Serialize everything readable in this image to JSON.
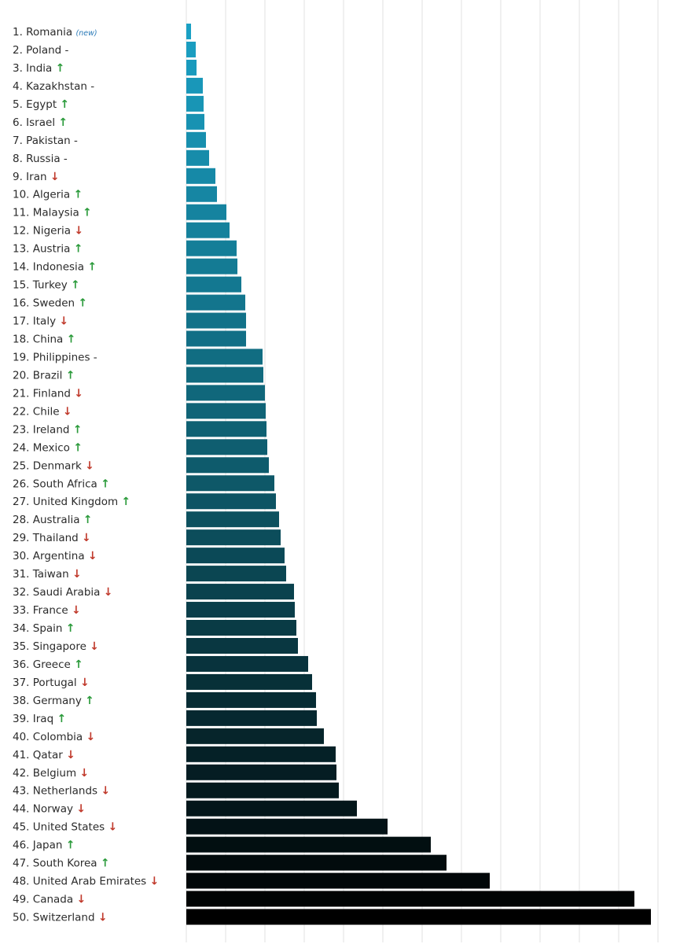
{
  "chart_data": {
    "type": "bar",
    "orientation": "horizontal",
    "title": "",
    "xlabel": "",
    "ylabel": "",
    "grid": true,
    "xlim": [
      0,
      12
    ],
    "trend_symbols": {
      "up": "↑",
      "down": "↓",
      "same": "-"
    },
    "items": [
      {
        "rank": "1.",
        "country": "Romania",
        "trend": "new",
        "tag": "(new)",
        "value": 0.12
      },
      {
        "rank": "2.",
        "country": "Poland",
        "trend": "same",
        "value": 0.24
      },
      {
        "rank": "3.",
        "country": "India",
        "trend": "up",
        "value": 0.26
      },
      {
        "rank": "4.",
        "country": "Kazakhstan",
        "trend": "same",
        "value": 0.42
      },
      {
        "rank": "5.",
        "country": "Egypt",
        "trend": "up",
        "value": 0.44
      },
      {
        "rank": "6.",
        "country": "Israel",
        "trend": "up",
        "value": 0.46
      },
      {
        "rank": "7.",
        "country": "Pakistan",
        "trend": "same",
        "value": 0.5
      },
      {
        "rank": "8.",
        "country": "Russia",
        "trend": "same",
        "value": 0.58
      },
      {
        "rank": "9.",
        "country": "Iran",
        "trend": "down",
        "value": 0.74
      },
      {
        "rank": "10.",
        "country": "Algeria",
        "trend": "up",
        "value": 0.78
      },
      {
        "rank": "11.",
        "country": "Malaysia",
        "trend": "up",
        "value": 1.02
      },
      {
        "rank": "12.",
        "country": "Nigeria",
        "trend": "down",
        "value": 1.1
      },
      {
        "rank": "13.",
        "country": "Austria",
        "trend": "up",
        "value": 1.28
      },
      {
        "rank": "14.",
        "country": "Indonesia",
        "trend": "up",
        "value": 1.3
      },
      {
        "rank": "15.",
        "country": "Turkey",
        "trend": "up",
        "value": 1.4
      },
      {
        "rank": "16.",
        "country": "Sweden",
        "trend": "up",
        "value": 1.5
      },
      {
        "rank": "17.",
        "country": "Italy",
        "trend": "down",
        "value": 1.52
      },
      {
        "rank": "18.",
        "country": "China",
        "trend": "up",
        "value": 1.52
      },
      {
        "rank": "19.",
        "country": "Philippines",
        "trend": "same",
        "value": 1.94
      },
      {
        "rank": "20.",
        "country": "Brazil",
        "trend": "up",
        "value": 1.96
      },
      {
        "rank": "21.",
        "country": "Finland",
        "trend": "down",
        "value": 2.0
      },
      {
        "rank": "22.",
        "country": "Chile",
        "trend": "down",
        "value": 2.02
      },
      {
        "rank": "23.",
        "country": "Ireland",
        "trend": "up",
        "value": 2.04
      },
      {
        "rank": "24.",
        "country": "Mexico",
        "trend": "up",
        "value": 2.06
      },
      {
        "rank": "25.",
        "country": "Denmark",
        "trend": "down",
        "value": 2.1
      },
      {
        "rank": "26.",
        "country": "South Africa",
        "trend": "up",
        "value": 2.24
      },
      {
        "rank": "27.",
        "country": "United Kingdom",
        "trend": "up",
        "value": 2.28
      },
      {
        "rank": "28.",
        "country": "Australia",
        "trend": "up",
        "value": 2.36
      },
      {
        "rank": "29.",
        "country": "Thailand",
        "trend": "down",
        "value": 2.4
      },
      {
        "rank": "30.",
        "country": "Argentina",
        "trend": "down",
        "value": 2.5
      },
      {
        "rank": "31.",
        "country": "Taiwan",
        "trend": "down",
        "value": 2.54
      },
      {
        "rank": "32.",
        "country": "Saudi Arabia",
        "trend": "down",
        "value": 2.74
      },
      {
        "rank": "33.",
        "country": "France",
        "trend": "down",
        "value": 2.76
      },
      {
        "rank": "34.",
        "country": "Spain",
        "trend": "up",
        "value": 2.8
      },
      {
        "rank": "35.",
        "country": "Singapore",
        "trend": "down",
        "value": 2.84
      },
      {
        "rank": "36.",
        "country": "Greece",
        "trend": "up",
        "value": 3.1
      },
      {
        "rank": "37.",
        "country": "Portugal",
        "trend": "down",
        "value": 3.2
      },
      {
        "rank": "38.",
        "country": "Germany",
        "trend": "up",
        "value": 3.3
      },
      {
        "rank": "39.",
        "country": "Iraq",
        "trend": "up",
        "value": 3.32
      },
      {
        "rank": "40.",
        "country": "Colombia",
        "trend": "down",
        "value": 3.5
      },
      {
        "rank": "41.",
        "country": "Qatar",
        "trend": "down",
        "value": 3.8
      },
      {
        "rank": "42.",
        "country": "Belgium",
        "trend": "down",
        "value": 3.82
      },
      {
        "rank": "43.",
        "country": "Netherlands",
        "trend": "down",
        "value": 3.88
      },
      {
        "rank": "44.",
        "country": "Norway",
        "trend": "down",
        "value": 4.34
      },
      {
        "rank": "45.",
        "country": "United States",
        "trend": "down",
        "value": 5.12
      },
      {
        "rank": "46.",
        "country": "Japan",
        "trend": "up",
        "value": 6.22
      },
      {
        "rank": "47.",
        "country": "South Korea",
        "trend": "up",
        "value": 6.62
      },
      {
        "rank": "48.",
        "country": "United Arab Emirates",
        "trend": "down",
        "value": 7.72
      },
      {
        "rank": "49.",
        "country": "Canada",
        "trend": "down",
        "value": 11.4
      },
      {
        "rank": "50.",
        "country": "Switzerland",
        "trend": "down",
        "value": 11.82
      }
    ],
    "colors": {
      "start": "#1aa0c4",
      "mid": "#0e5a6a",
      "end": "#000000",
      "grid": "#e2e2e2",
      "up": "#2a9a3a",
      "down": "#c0392b",
      "tag": "#2a7ab8"
    }
  }
}
